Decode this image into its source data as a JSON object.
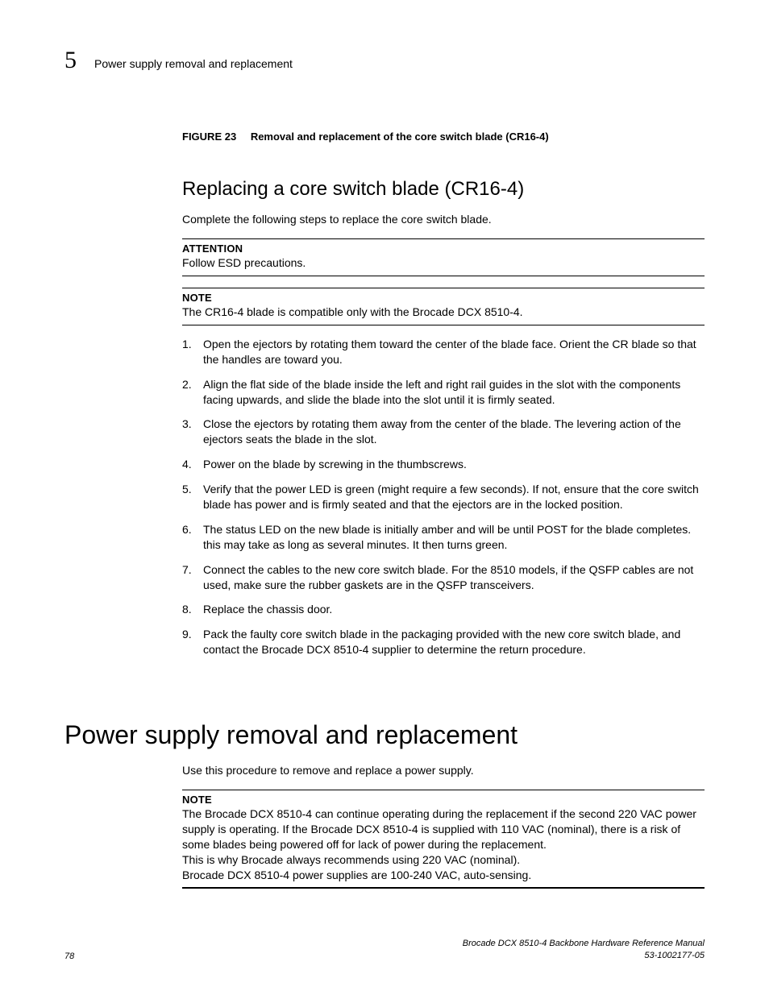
{
  "runningHead": {
    "chapterNumber": "5",
    "title": "Power supply removal and replacement"
  },
  "figure": {
    "label": "FIGURE 23",
    "title": "Removal and replacement of the core switch blade (CR16-4)"
  },
  "section1": {
    "heading": "Replacing a core switch blade (CR16-4)",
    "intro": "Complete the following steps to replace the core switch blade.",
    "attention": {
      "label": "ATTENTION",
      "body": "Follow ESD precautions."
    },
    "note": {
      "label": "NOTE",
      "body": "The CR16-4 blade is compatible only with the Brocade DCX 8510-4."
    },
    "steps": [
      "Open the ejectors by rotating them toward the center of the blade face. Orient the CR blade so that the handles are toward you.",
      "Align the flat side of the blade inside the left and right rail guides in the slot with the components facing upwards, and slide the blade into the slot until it is firmly seated.",
      "Close the ejectors by rotating them away from the center of the blade. The levering action of the ejectors seats the blade in the slot.",
      "Power on the blade by screwing in the thumbscrews.",
      "Verify that the power LED is green (might require a few seconds). If not, ensure that the core switch blade has power and is firmly seated and that the ejectors are in the locked position.",
      "The status LED on the new blade is initially amber and will be until POST for the blade completes. this may take as long as several minutes. It then turns green.",
      "Connect the cables to the new core switch blade. For the 8510 models, if the QSFP cables are not used, make sure the rubber gaskets are in the QSFP transceivers.",
      "Replace the chassis door.",
      "Pack the faulty core switch blade in the packaging provided with the new core switch blade, and contact the Brocade DCX 8510-4 supplier to determine the return procedure."
    ]
  },
  "section2": {
    "heading": "Power supply removal and replacement",
    "intro": "Use this procedure to remove and replace a power supply.",
    "note": {
      "label": "NOTE",
      "line1": "The Brocade DCX 8510-4 can continue operating during the replacement if the second 220 VAC power supply is operating. If the Brocade DCX 8510-4 is supplied with 110 VAC (nominal), there is a risk of some blades being powered off for lack of power during the replacement.",
      "line2": "This is why Brocade always recommends using 220 VAC (nominal).",
      "line3": "Brocade DCX 8510-4 power supplies are 100-240 VAC, auto-sensing."
    }
  },
  "footer": {
    "pageNumber": "78",
    "manualTitle": "Brocade DCX 8510-4 Backbone Hardware Reference Manual",
    "docNumber": "53-1002177-05"
  }
}
